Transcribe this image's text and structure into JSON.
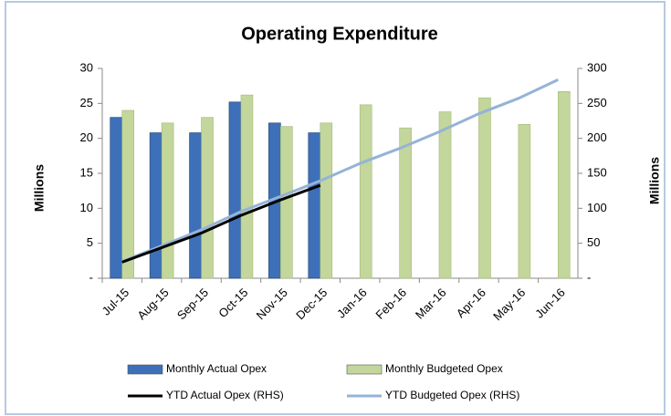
{
  "chart_data": {
    "type": "combo",
    "title": "Operating Expenditure",
    "y_label": "Millions",
    "y2_label": "Millions",
    "categories": [
      "Jul-15",
      "Aug-15",
      "Sep-15",
      "Oct-15",
      "Nov-15",
      "Dec-15",
      "Jan-16",
      "Feb-16",
      "Mar-16",
      "Apr-16",
      "May-16",
      "Jun-16"
    ],
    "series": [
      {
        "name": "Monthly Actual Opex",
        "type": "bar",
        "color": "#3d70b8",
        "values": [
          23,
          20.8,
          20.8,
          25.2,
          22.2,
          20.8,
          null,
          null,
          null,
          null,
          null,
          null
        ]
      },
      {
        "name": "Monthly Budgeted Opex",
        "type": "bar",
        "color": "#c3d69b",
        "values": [
          24,
          22.2,
          23,
          26.2,
          21.7,
          22.2,
          24.8,
          21.5,
          23.8,
          25.8,
          22,
          26.7
        ]
      },
      {
        "name": "YTD Actual Opex  (RHS)",
        "type": "line",
        "axis": "y2",
        "color": "#000000",
        "values": [
          23,
          43.8,
          64.6,
          89.8,
          112,
          132.8,
          null,
          null,
          null,
          null,
          null,
          null
        ]
      },
      {
        "name": "YTD Budgeted Opex (RHS)",
        "type": "line",
        "axis": "y2",
        "color": "#95b3d7",
        "values": [
          24,
          46.2,
          69.2,
          95.4,
          117.1,
          139.3,
          164.1,
          185.6,
          209.4,
          235.2,
          257.2,
          283.9
        ]
      }
    ],
    "ylim": [
      0,
      30
    ],
    "yticks": [
      {
        "value": 0,
        "label": "-"
      },
      5,
      10,
      15,
      20,
      25,
      30
    ],
    "y2lim": [
      0,
      300
    ],
    "y2ticks": [
      {
        "value": 0,
        "label": "-"
      },
      50,
      100,
      150,
      200,
      250,
      300
    ],
    "grid": false
  }
}
